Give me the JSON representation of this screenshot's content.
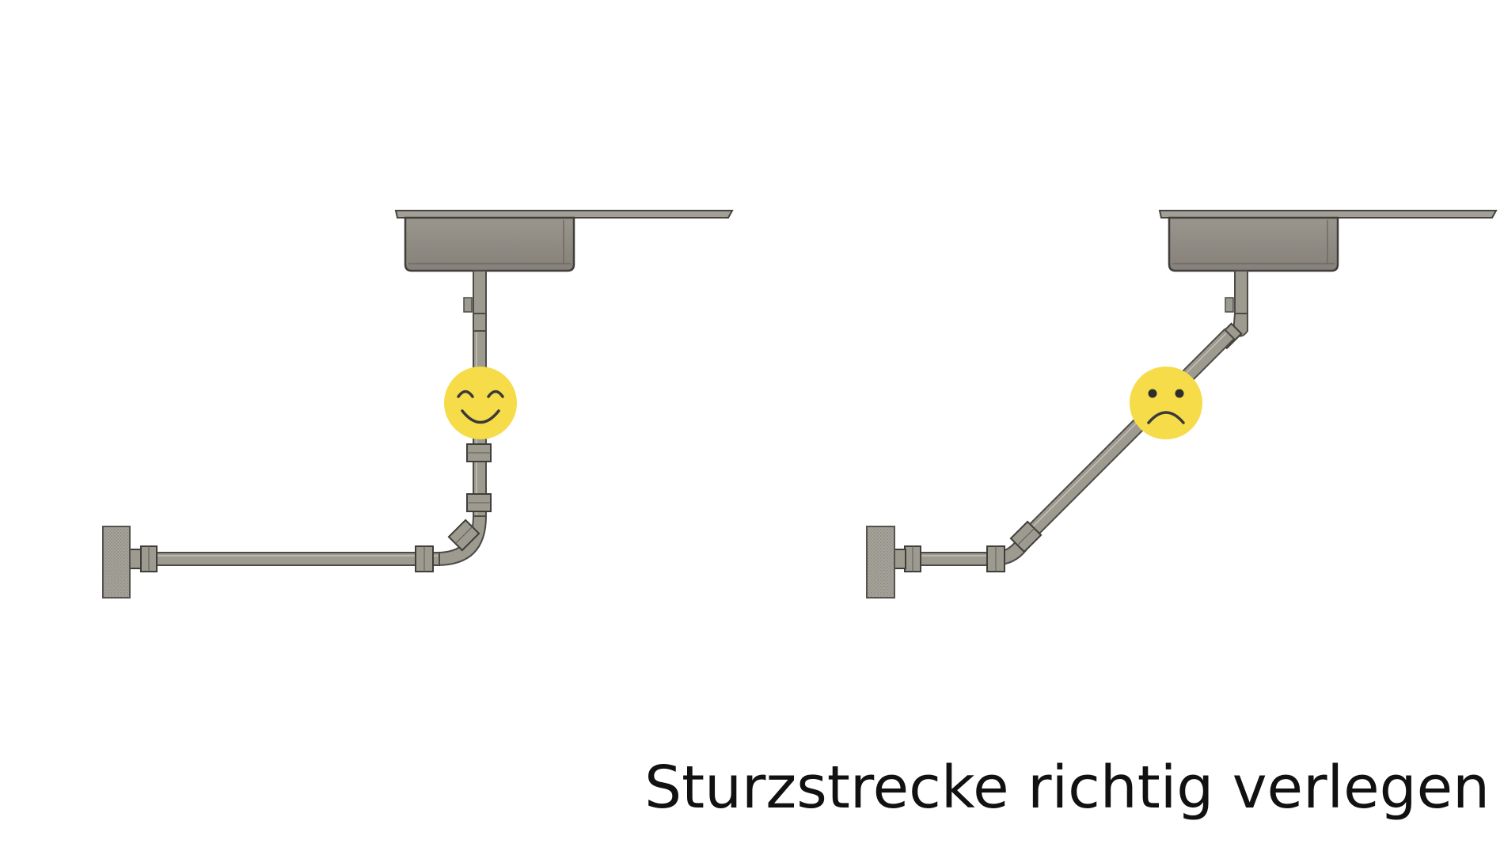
{
  "caption": "Sturzstrecke richtig verlegen",
  "colors": {
    "background": "#ffffff",
    "pipe_fill": "#9d9a90",
    "pipe_dark": "#55534d",
    "pipe_light": "#c4c1b8",
    "sink_fill": "#908c83",
    "emoji_face": "#f5dc48",
    "emoji_feature": "#3a3a3a",
    "caption_text": "#111111"
  },
  "panels": [
    {
      "name": "correct-routing",
      "emoji": "smiling-face-icon"
    },
    {
      "name": "incorrect-routing",
      "emoji": "frowning-face-icon"
    }
  ]
}
